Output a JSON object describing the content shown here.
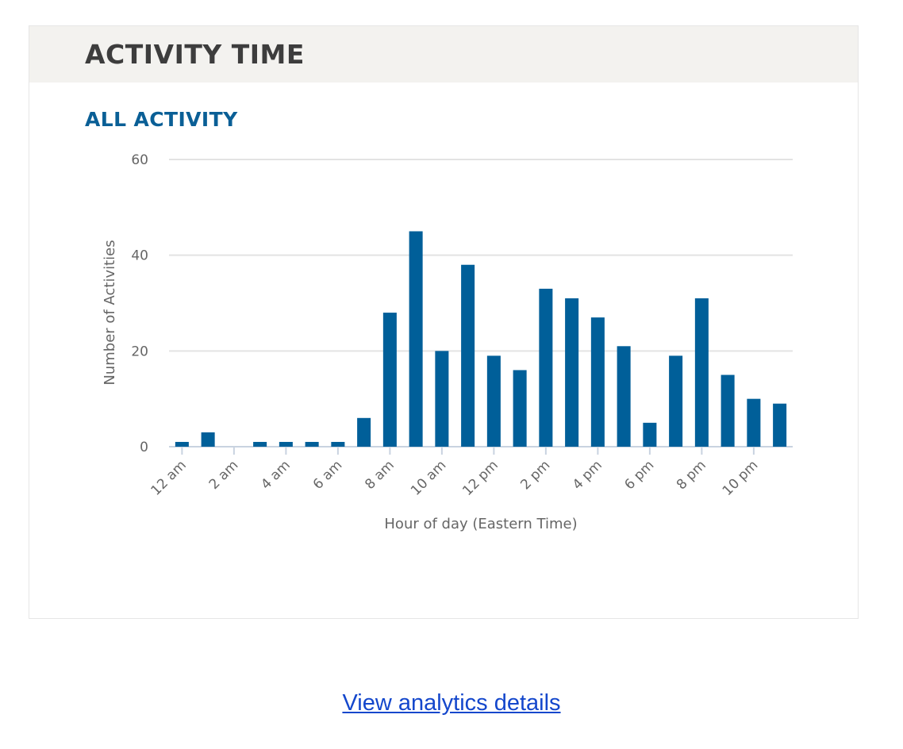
{
  "card": {
    "title": "ACTIVITY TIME",
    "section_title": "ALL ACTIVITY"
  },
  "link": {
    "label": "View analytics details"
  },
  "colors": {
    "bar": "#005f99",
    "grid": "#e3e3e3",
    "tick_text": "#666666"
  },
  "chart_data": {
    "type": "bar",
    "title": "ALL ACTIVITY",
    "xlabel": "Hour of day (Eastern Time)",
    "ylabel": "Number of Activities",
    "ylim": [
      0,
      60
    ],
    "yticks": [
      0,
      20,
      40,
      60
    ],
    "grid": true,
    "legend": "none",
    "categories": [
      "12 am",
      "1 am",
      "2 am",
      "3 am",
      "4 am",
      "5 am",
      "6 am",
      "7 am",
      "8 am",
      "9 am",
      "10 am",
      "11 am",
      "12 pm",
      "1 pm",
      "2 pm",
      "3 pm",
      "4 pm",
      "5 pm",
      "6 pm",
      "7 pm",
      "8 pm",
      "9 pm",
      "10 pm",
      "11 pm"
    ],
    "tick_labels": [
      "12 am",
      "2 am",
      "4 am",
      "6 am",
      "8 am",
      "10 am",
      "12 pm",
      "2 pm",
      "4 pm",
      "6 pm",
      "8 pm",
      "10 pm"
    ],
    "values": [
      1,
      3,
      0,
      1,
      1,
      1,
      1,
      6,
      28,
      45,
      20,
      38,
      19,
      16,
      33,
      31,
      27,
      21,
      5,
      19,
      31,
      15,
      10,
      9
    ]
  }
}
